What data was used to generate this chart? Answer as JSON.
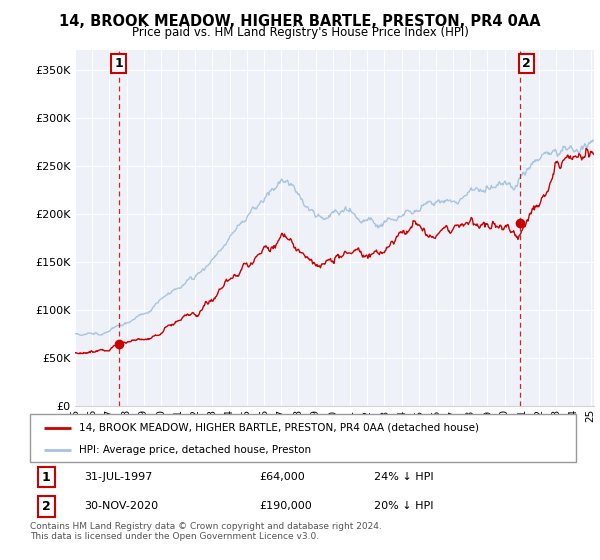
{
  "title": "14, BROOK MEADOW, HIGHER BARTLE, PRESTON, PR4 0AA",
  "subtitle": "Price paid vs. HM Land Registry's House Price Index (HPI)",
  "ylabel_ticks": [
    "£0",
    "£50K",
    "£100K",
    "£150K",
    "£200K",
    "£250K",
    "£300K",
    "£350K"
  ],
  "ytick_vals": [
    0,
    50000,
    100000,
    150000,
    200000,
    250000,
    300000,
    350000
  ],
  "ylim": [
    0,
    370000
  ],
  "xlim_start": 1995.0,
  "xlim_end": 2025.2,
  "hpi_color": "#a8c4e0",
  "price_color": "#cc0000",
  "chart_bg": "#eef2f8",
  "marker1_date": 1997.58,
  "marker1_price": 64000,
  "marker2_date": 2020.92,
  "marker2_price": 190000,
  "legend_line1": "14, BROOK MEADOW, HIGHER BARTLE, PRESTON, PR4 0AA (detached house)",
  "legend_line2": "HPI: Average price, detached house, Preston",
  "footer": "Contains HM Land Registry data © Crown copyright and database right 2024.\nThis data is licensed under the Open Government Licence v3.0."
}
